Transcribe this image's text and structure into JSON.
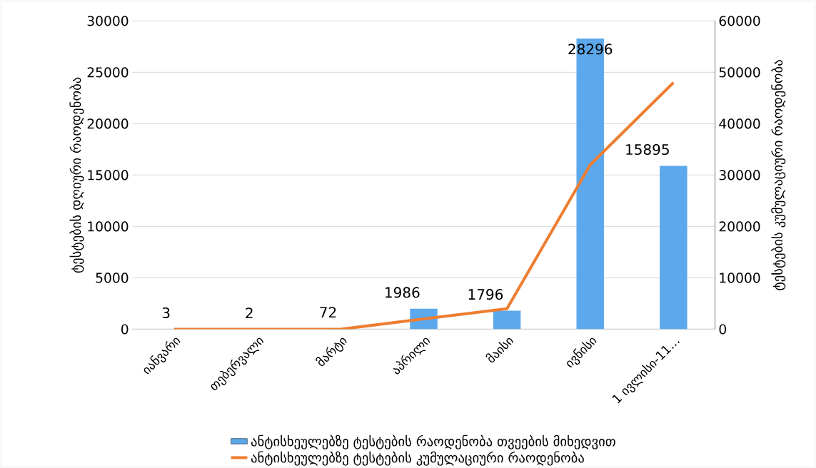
{
  "chart_data": {
    "type": "bar",
    "categories": [
      "იანვარი",
      "თებერვალი",
      "მარტი",
      "აპრილი",
      "მაისი",
      "ივნისი",
      "1 ივლისი-11…"
    ],
    "series": [
      {
        "name": "ანტისხეულებზე ტესტების რაოდენობა თვეების მიხედვით",
        "color": "#5ca8ec",
        "values": [
          3,
          2,
          72,
          1986,
          1796,
          28296,
          15895
        ],
        "value_labels": [
          "3",
          "2",
          "72",
          "1986",
          "1796",
          "28296",
          "15895"
        ]
      },
      {
        "name": "ანტისხეულებზე ტესტების კუმულაციური რაოდენობა",
        "type": "line",
        "axis": "y2",
        "color": "#ed7d31",
        "values": [
          0,
          0,
          0,
          2000,
          4000,
          32000,
          48000
        ]
      }
    ],
    "ylabel": "ტესტების დღიური რაოდენობა",
    "y2label": "ტესტების კუმულაციური რაოდენობა",
    "ylim": [
      0,
      30000
    ],
    "yticks": [
      0,
      5000,
      10000,
      15000,
      20000,
      25000,
      30000
    ],
    "y2lim": [
      0,
      60000
    ],
    "y2ticks": [
      0,
      10000,
      20000,
      30000,
      40000,
      50000,
      60000
    ],
    "grid": "y",
    "legend": "bottom"
  }
}
